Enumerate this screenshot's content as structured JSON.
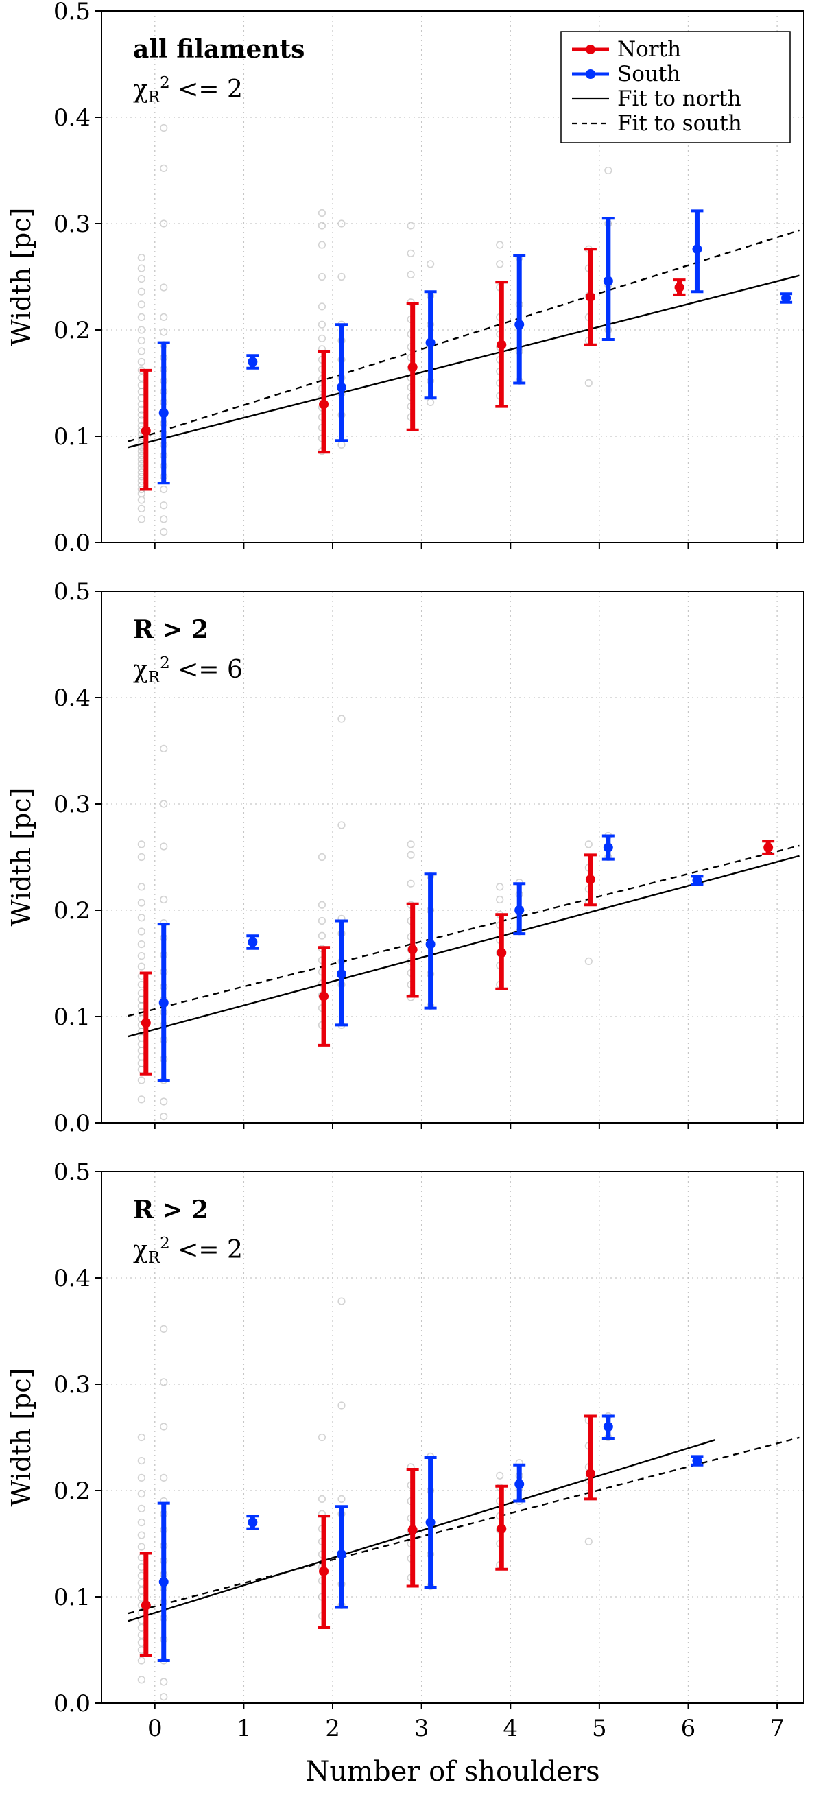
{
  "chart_data": {
    "type": "scatter",
    "subtype": "errorbar-multipanel",
    "xlabel": "Number of shoulders",
    "ylabel": "Width [pc]",
    "xlim": [
      -0.6,
      7.3
    ],
    "ylim": [
      0,
      0.5
    ],
    "xticks": [
      0,
      1,
      2,
      3,
      4,
      5,
      6,
      7
    ],
    "yticks": [
      0,
      0.1,
      0.2,
      0.3,
      0.4,
      0.5
    ],
    "grid": true,
    "colors": {
      "north": "#e8000b",
      "south": "#0033ff",
      "fit": "#000000",
      "scatter": "#8c8c8c",
      "grid": "#c6c6c6"
    },
    "legend": {
      "panel_index": 0,
      "position": "top-right",
      "entries": [
        {
          "label": "North",
          "type": "errorbar",
          "color_key": "north"
        },
        {
          "label": "South",
          "type": "errorbar",
          "color_key": "south"
        },
        {
          "label": "Fit to north",
          "type": "line",
          "dash": "solid",
          "color_key": "fit"
        },
        {
          "label": "Fit to south",
          "type": "line",
          "dash": "dashed",
          "color_key": "fit"
        }
      ]
    },
    "panels": [
      {
        "annotation": {
          "line1": "all filaments",
          "line2": {
            "symbol": "χ",
            "sub": "R",
            "sup": "2",
            "rest": " <= 2"
          }
        },
        "show_x_tick_labels": false,
        "series": [
          {
            "name": "North",
            "color_key": "north",
            "offset": -0.1,
            "points": [
              {
                "x": 0,
                "y": 0.105,
                "lo": 0.05,
                "hi": 0.162
              },
              {
                "x": 2,
                "y": 0.13,
                "lo": 0.085,
                "hi": 0.18
              },
              {
                "x": 3,
                "y": 0.165,
                "lo": 0.106,
                "hi": 0.225
              },
              {
                "x": 4,
                "y": 0.186,
                "lo": 0.128,
                "hi": 0.245
              },
              {
                "x": 5,
                "y": 0.231,
                "lo": 0.186,
                "hi": 0.276
              },
              {
                "x": 6,
                "y": 0.24,
                "lo": 0.233,
                "hi": 0.247
              }
            ]
          },
          {
            "name": "South",
            "color_key": "south",
            "offset": 0.1,
            "points": [
              {
                "x": 0,
                "y": 0.122,
                "lo": 0.056,
                "hi": 0.188
              },
              {
                "x": 1,
                "y": 0.17,
                "lo": 0.164,
                "hi": 0.176
              },
              {
                "x": 2,
                "y": 0.146,
                "lo": 0.096,
                "hi": 0.205
              },
              {
                "x": 3,
                "y": 0.188,
                "lo": 0.136,
                "hi": 0.236
              },
              {
                "x": 4,
                "y": 0.205,
                "lo": 0.15,
                "hi": 0.27
              },
              {
                "x": 5,
                "y": 0.246,
                "lo": 0.191,
                "hi": 0.305
              },
              {
                "x": 6,
                "y": 0.276,
                "lo": 0.236,
                "hi": 0.312
              },
              {
                "x": 7,
                "y": 0.23,
                "lo": 0.226,
                "hi": 0.234
              }
            ]
          }
        ],
        "fits": [
          {
            "name": "Fit to north",
            "style": "solid",
            "intercept": 0.096,
            "slope": 0.0214,
            "x_range": [
              -0.3,
              7.25
            ]
          },
          {
            "name": "Fit to south",
            "style": "dashed",
            "intercept": 0.103,
            "slope": 0.0263,
            "x_range": [
              -0.3,
              7.25
            ]
          }
        ],
        "scatter": [
          {
            "x": -0.15,
            "ys": [
              0.022,
              0.032,
              0.04,
              0.046,
              0.05,
              0.054,
              0.058,
              0.062,
              0.066,
              0.07,
              0.074,
              0.078,
              0.082,
              0.086,
              0.09,
              0.094,
              0.098,
              0.102,
              0.106,
              0.11,
              0.115,
              0.12,
              0.125,
              0.13,
              0.136,
              0.142,
              0.148,
              0.155,
              0.162,
              0.17,
              0.18,
              0.19,
              0.2,
              0.212,
              0.224,
              0.236,
              0.248,
              0.258,
              0.268
            ]
          },
          {
            "x": 0.1,
            "ys": [
              0.01,
              0.022,
              0.035,
              0.05,
              0.062,
              0.072,
              0.082,
              0.092,
              0.102,
              0.112,
              0.122,
              0.132,
              0.142,
              0.152,
              0.163,
              0.174,
              0.186,
              0.198,
              0.212,
              0.24,
              0.3,
              0.352,
              0.39
            ]
          },
          {
            "x": 1.88,
            "ys": [
              0.086,
              0.098,
              0.108,
              0.118,
              0.127,
              0.136,
              0.145,
              0.154,
              0.163,
              0.172,
              0.182,
              0.192,
              0.205,
              0.222,
              0.25,
              0.28,
              0.298,
              0.31
            ]
          },
          {
            "x": 2.1,
            "ys": [
              0.092,
              0.12,
              0.14,
              0.155,
              0.172,
              0.19,
              0.205,
              0.25,
              0.3
            ]
          },
          {
            "x": 2.88,
            "ys": [
              0.118,
              0.128,
              0.137,
              0.146,
              0.155,
              0.164,
              0.174,
              0.184,
              0.196,
              0.21,
              0.226,
              0.252,
              0.272,
              0.298
            ]
          },
          {
            "x": 3.1,
            "ys": [
              0.132,
              0.152,
              0.186,
              0.205,
              0.232,
              0.262
            ]
          },
          {
            "x": 3.88,
            "ys": [
              0.138,
              0.15,
              0.161,
              0.172,
              0.184,
              0.196,
              0.212,
              0.24,
              0.262,
              0.28
            ]
          },
          {
            "x": 4.1,
            "ys": [
              0.152,
              0.18,
              0.203,
              0.224,
              0.268
            ]
          },
          {
            "x": 4.88,
            "ys": [
              0.15,
              0.19,
              0.212,
              0.232,
              0.258,
              0.276
            ]
          },
          {
            "x": 5.1,
            "ys": [
              0.2,
              0.242,
              0.3,
              0.35
            ]
          }
        ]
      },
      {
        "annotation": {
          "line1": "R > 2",
          "line2": {
            "symbol": "χ",
            "sub": "R",
            "sup": "2",
            "rest": " <= 6"
          }
        },
        "show_x_tick_labels": false,
        "series": [
          {
            "name": "North",
            "color_key": "north",
            "offset": -0.1,
            "points": [
              {
                "x": 0,
                "y": 0.094,
                "lo": 0.046,
                "hi": 0.141
              },
              {
                "x": 2,
                "y": 0.119,
                "lo": 0.073,
                "hi": 0.165
              },
              {
                "x": 3,
                "y": 0.163,
                "lo": 0.119,
                "hi": 0.206
              },
              {
                "x": 4,
                "y": 0.16,
                "lo": 0.126,
                "hi": 0.196
              },
              {
                "x": 5,
                "y": 0.229,
                "lo": 0.205,
                "hi": 0.252
              },
              {
                "x": 7,
                "y": 0.259,
                "lo": 0.253,
                "hi": 0.265
              }
            ]
          },
          {
            "name": "South",
            "color_key": "south",
            "offset": 0.1,
            "points": [
              {
                "x": 0,
                "y": 0.113,
                "lo": 0.04,
                "hi": 0.187
              },
              {
                "x": 1,
                "y": 0.17,
                "lo": 0.164,
                "hi": 0.176
              },
              {
                "x": 2,
                "y": 0.14,
                "lo": 0.092,
                "hi": 0.19
              },
              {
                "x": 3,
                "y": 0.168,
                "lo": 0.108,
                "hi": 0.234
              },
              {
                "x": 4,
                "y": 0.2,
                "lo": 0.178,
                "hi": 0.225
              },
              {
                "x": 5,
                "y": 0.259,
                "lo": 0.248,
                "hi": 0.27
              },
              {
                "x": 6,
                "y": 0.228,
                "lo": 0.224,
                "hi": 0.232
              }
            ]
          }
        ],
        "fits": [
          {
            "name": "Fit to north",
            "style": "solid",
            "intercept": 0.088,
            "slope": 0.0225,
            "x_range": [
              -0.3,
              7.25
            ]
          },
          {
            "name": "Fit to south",
            "style": "dashed",
            "intercept": 0.107,
            "slope": 0.0212,
            "x_range": [
              -0.3,
              7.25
            ]
          }
        ],
        "scatter": [
          {
            "x": -0.15,
            "ys": [
              0.022,
              0.04,
              0.05,
              0.056,
              0.062,
              0.068,
              0.074,
              0.08,
              0.086,
              0.092,
              0.098,
              0.104,
              0.11,
              0.116,
              0.122,
              0.13,
              0.138,
              0.147,
              0.157,
              0.168,
              0.18,
              0.193,
              0.207,
              0.222,
              0.25,
              0.262
            ]
          },
          {
            "x": 0.1,
            "ys": [
              0.006,
              0.02,
              0.04,
              0.06,
              0.078,
              0.092,
              0.104,
              0.116,
              0.128,
              0.142,
              0.158,
              0.174,
              0.188,
              0.21,
              0.26,
              0.3,
              0.352
            ]
          },
          {
            "x": 1.88,
            "ys": [
              0.092,
              0.108,
              0.12,
              0.131,
              0.142,
              0.153,
              0.164,
              0.176,
              0.19,
              0.205,
              0.25
            ]
          },
          {
            "x": 2.1,
            "ys": [
              0.092,
              0.13,
              0.152,
              0.178,
              0.192,
              0.28,
              0.38
            ]
          },
          {
            "x": 2.88,
            "ys": [
              0.118,
              0.13,
              0.141,
              0.152,
              0.163,
              0.175,
              0.19,
              0.205,
              0.225,
              0.252,
              0.262
            ]
          },
          {
            "x": 3.1,
            "ys": [
              0.11,
              0.14,
              0.17,
              0.2,
              0.232
            ]
          },
          {
            "x": 3.88,
            "ys": [
              0.13,
              0.148,
              0.16,
              0.172,
              0.186,
              0.196,
              0.21,
              0.222
            ]
          },
          {
            "x": 4.1,
            "ys": [
              0.18,
              0.198,
              0.215,
              0.226
            ]
          },
          {
            "x": 4.88,
            "ys": [
              0.152,
              0.208,
              0.22,
              0.24,
              0.262
            ]
          },
          {
            "x": 5.1,
            "ys": [
              0.25,
              0.26,
              0.27
            ]
          }
        ]
      },
      {
        "annotation": {
          "line1": "R > 2",
          "line2": {
            "symbol": "χ",
            "sub": "R",
            "sup": "2",
            "rest": " <= 2"
          }
        },
        "show_x_tick_labels": true,
        "series": [
          {
            "name": "North",
            "color_key": "north",
            "offset": -0.1,
            "points": [
              {
                "x": 0,
                "y": 0.092,
                "lo": 0.045,
                "hi": 0.141
              },
              {
                "x": 2,
                "y": 0.124,
                "lo": 0.071,
                "hi": 0.176
              },
              {
                "x": 3,
                "y": 0.163,
                "lo": 0.11,
                "hi": 0.22
              },
              {
                "x": 4,
                "y": 0.164,
                "lo": 0.126,
                "hi": 0.204
              },
              {
                "x": 5,
                "y": 0.216,
                "lo": 0.192,
                "hi": 0.27
              }
            ]
          },
          {
            "name": "South",
            "color_key": "south",
            "offset": 0.1,
            "points": [
              {
                "x": 0,
                "y": 0.114,
                "lo": 0.04,
                "hi": 0.188
              },
              {
                "x": 1,
                "y": 0.17,
                "lo": 0.164,
                "hi": 0.176
              },
              {
                "x": 2,
                "y": 0.14,
                "lo": 0.09,
                "hi": 0.185
              },
              {
                "x": 3,
                "y": 0.17,
                "lo": 0.109,
                "hi": 0.231
              },
              {
                "x": 4,
                "y": 0.206,
                "lo": 0.19,
                "hi": 0.224
              },
              {
                "x": 5,
                "y": 0.26,
                "lo": 0.249,
                "hi": 0.27
              },
              {
                "x": 6,
                "y": 0.228,
                "lo": 0.224,
                "hi": 0.232
              }
            ]
          }
        ],
        "fits": [
          {
            "name": "Fit to north",
            "style": "solid",
            "intercept": 0.085,
            "slope": 0.0258,
            "x_range": [
              -0.3,
              6.3
            ]
          },
          {
            "name": "Fit to south",
            "style": "dashed",
            "intercept": 0.091,
            "slope": 0.0219,
            "x_range": [
              -0.3,
              7.25
            ]
          }
        ],
        "scatter": [
          {
            "x": -0.15,
            "ys": [
              0.022,
              0.04,
              0.05,
              0.057,
              0.064,
              0.071,
              0.078,
              0.085,
              0.092,
              0.099,
              0.106,
              0.113,
              0.12,
              0.128,
              0.137,
              0.147,
              0.158,
              0.17,
              0.183,
              0.197,
              0.212,
              0.228,
              0.25
            ]
          },
          {
            "x": 0.1,
            "ys": [
              0.006,
              0.02,
              0.04,
              0.06,
              0.08,
              0.095,
              0.108,
              0.121,
              0.134,
              0.148,
              0.163,
              0.178,
              0.19,
              0.212,
              0.26,
              0.302,
              0.352
            ]
          },
          {
            "x": 1.88,
            "ys": [
              0.082,
              0.1,
              0.115,
              0.128,
              0.14,
              0.152,
              0.164,
              0.178,
              0.192,
              0.25
            ]
          },
          {
            "x": 2.1,
            "ys": [
              0.092,
              0.112,
              0.14,
              0.178,
              0.192,
              0.28,
              0.378
            ]
          },
          {
            "x": 2.88,
            "ys": [
              0.118,
              0.136,
              0.15,
              0.162,
              0.174,
              0.19,
              0.205,
              0.222
            ]
          },
          {
            "x": 3.1,
            "ys": [
              0.11,
              0.14,
              0.17,
              0.2,
              0.232
            ]
          },
          {
            "x": 3.88,
            "ys": [
              0.13,
              0.15,
              0.163,
              0.176,
              0.19,
              0.203,
              0.214
            ]
          },
          {
            "x": 4.1,
            "ys": [
              0.19,
              0.202,
              0.214,
              0.226
            ]
          },
          {
            "x": 4.88,
            "ys": [
              0.152,
              0.21,
              0.222,
              0.242,
              0.266
            ]
          },
          {
            "x": 5.1,
            "ys": [
              0.25,
              0.26,
              0.27
            ]
          }
        ]
      }
    ]
  }
}
